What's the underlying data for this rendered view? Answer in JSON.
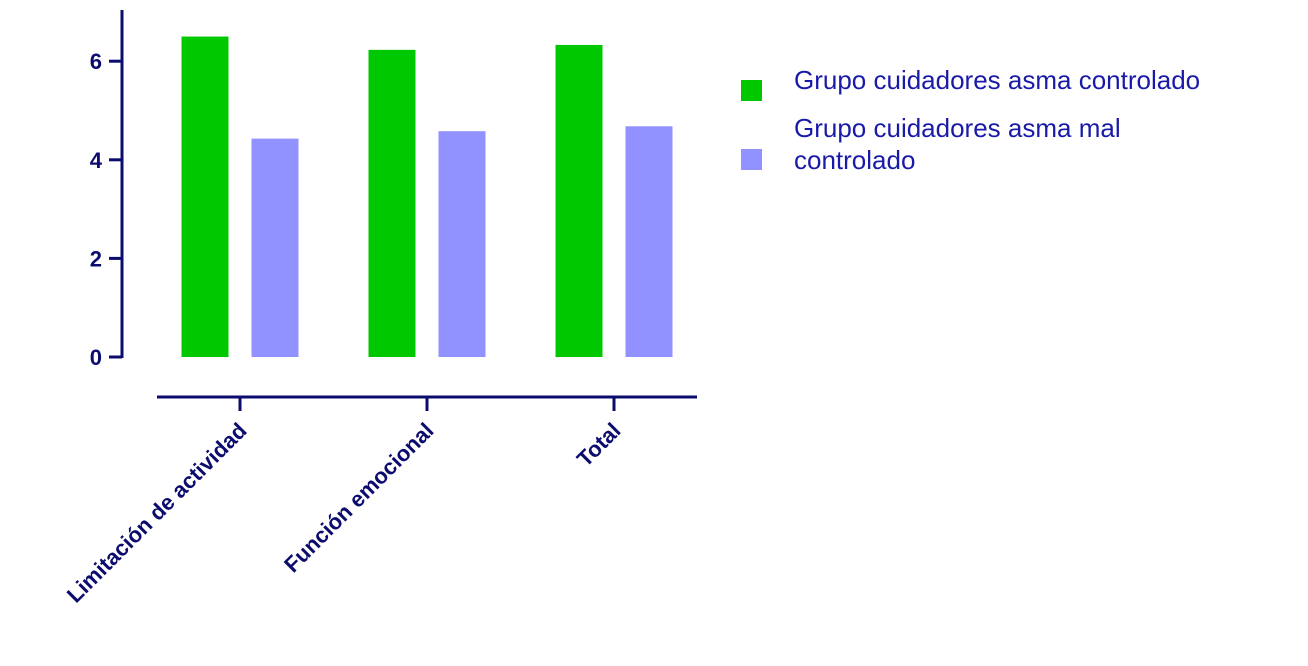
{
  "chart_data": {
    "type": "bar",
    "categories": [
      "Limitación de actividad",
      "Función emocional",
      "Total"
    ],
    "series": [
      {
        "name": "Grupo cuidadores asma controlado",
        "values": [
          6.5,
          6.23,
          6.33
        ],
        "color": "#00c800"
      },
      {
        "name": "Grupo cuidadores asma mal controlado",
        "values": [
          4.43,
          4.58,
          4.68
        ],
        "color": "#9191ff"
      }
    ],
    "yticks": [
      0,
      2,
      4,
      6
    ],
    "ytick_labels": [
      "0",
      "2",
      "4",
      "6"
    ],
    "ylim": [
      0,
      7
    ],
    "xlabel": "",
    "ylabel": "",
    "title": "",
    "grid": false,
    "legend_position": "right",
    "axis_color": "#0c0c6e"
  }
}
